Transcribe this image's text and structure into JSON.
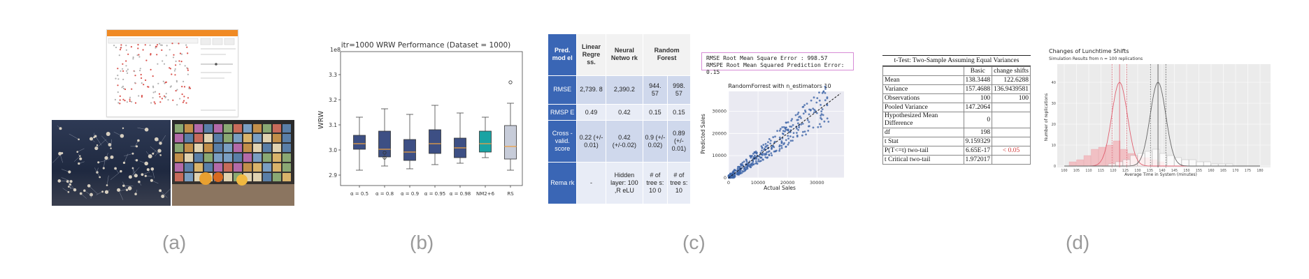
{
  "captions": [
    "(a)",
    "(b)",
    "(c)",
    "(d)"
  ],
  "panel_b": {
    "title": "itr=1000 WRW Performance (Dataset = 1000)",
    "ylabel": "WRW",
    "scale_label": "1e8",
    "y_ticks": [
      "2.9",
      "3.0",
      "3.1",
      "3.2",
      "3.3"
    ],
    "categories": [
      "α = 0.5",
      "α = 0.8",
      "α = 0.9",
      "α = 0.95",
      "α = 0.98",
      "NM2+6",
      "RS"
    ],
    "colors": {
      "navy": "#3d4f84",
      "teal": "#1aa3a3",
      "light": "#c7ccd9",
      "median": "#f0a040"
    }
  },
  "panel_c": {
    "table": {
      "headers": [
        "Pred. mod el",
        "Linear Regre ss.",
        "Neural Netwo rk",
        "Random Forest"
      ],
      "rows": [
        {
          "label": "RMSE",
          "values": [
            "2,739. 8",
            "2,390.2",
            "944. 57",
            "998. 57"
          ]
        },
        {
          "label": "RMSP E",
          "values": [
            "0.49",
            "0.42",
            "0.15",
            "0.15"
          ]
        },
        {
          "label": "Cross -valid. score",
          "values": [
            "0.22 (+/- 0.01)",
            "0.42 (+/-0.02)",
            "0.9 (+/- 0.02)",
            "0.89 (+/- 0.01)"
          ]
        },
        {
          "label": "Rema rk",
          "values": [
            "-",
            "Hidden layer: 100 ,R eLU",
            "# of tree s: 10 0",
            "# of tree s: 10"
          ]
        }
      ]
    },
    "metrics_lines": [
      "RMSE Root Mean Square Error : 998.57",
      "RMSPE Root Mean Squared Prediction Error: 0.15"
    ],
    "scatter": {
      "title": "RandomForrest with n_estimators 10",
      "xlabel": "Actual Sales",
      "ylabel": "Predicted Sales",
      "x_ticks": [
        "0",
        "10000",
        "20000",
        "30000"
      ],
      "y_ticks": [
        "0",
        "10000",
        "20000",
        "30000"
      ]
    }
  },
  "panel_d": {
    "ttest": {
      "title": "t-Test: Two-Sample Assuming Equal Variances",
      "col_headers": [
        "",
        "Basic",
        "change shifts"
      ],
      "rows": [
        [
          "Mean",
          "138.3448",
          "122.6288"
        ],
        [
          "Variance",
          "157.4688",
          "136.9439581"
        ],
        [
          "Observations",
          "100",
          "100"
        ],
        [
          "Pooled Variance",
          "147.2064",
          ""
        ],
        [
          "Hypothesized Mean Difference",
          "0",
          ""
        ],
        [
          "df",
          "198",
          ""
        ],
        [
          "t Stat",
          "9.159329",
          ""
        ],
        [
          "P(T<=t) two-tail",
          "6.65E-17",
          "< 0.05"
        ],
        [
          "t Critical two-tail",
          "1.972017",
          ""
        ]
      ]
    },
    "hist": {
      "title": "Changes of Lunchtime Shifts",
      "subtitle": "Simulation Results from n = 100 replications",
      "xlabel": "Average Time in System (minutes)",
      "ylabel": "Number of replications",
      "x_ticks": [
        "100",
        "105",
        "110",
        "115",
        "120",
        "125",
        "130",
        "135",
        "140",
        "145",
        "150",
        "155",
        "160",
        "165",
        "170",
        "175",
        "180"
      ],
      "y_ticks": [
        "0",
        "10",
        "20",
        "30",
        "40"
      ]
    }
  }
}
